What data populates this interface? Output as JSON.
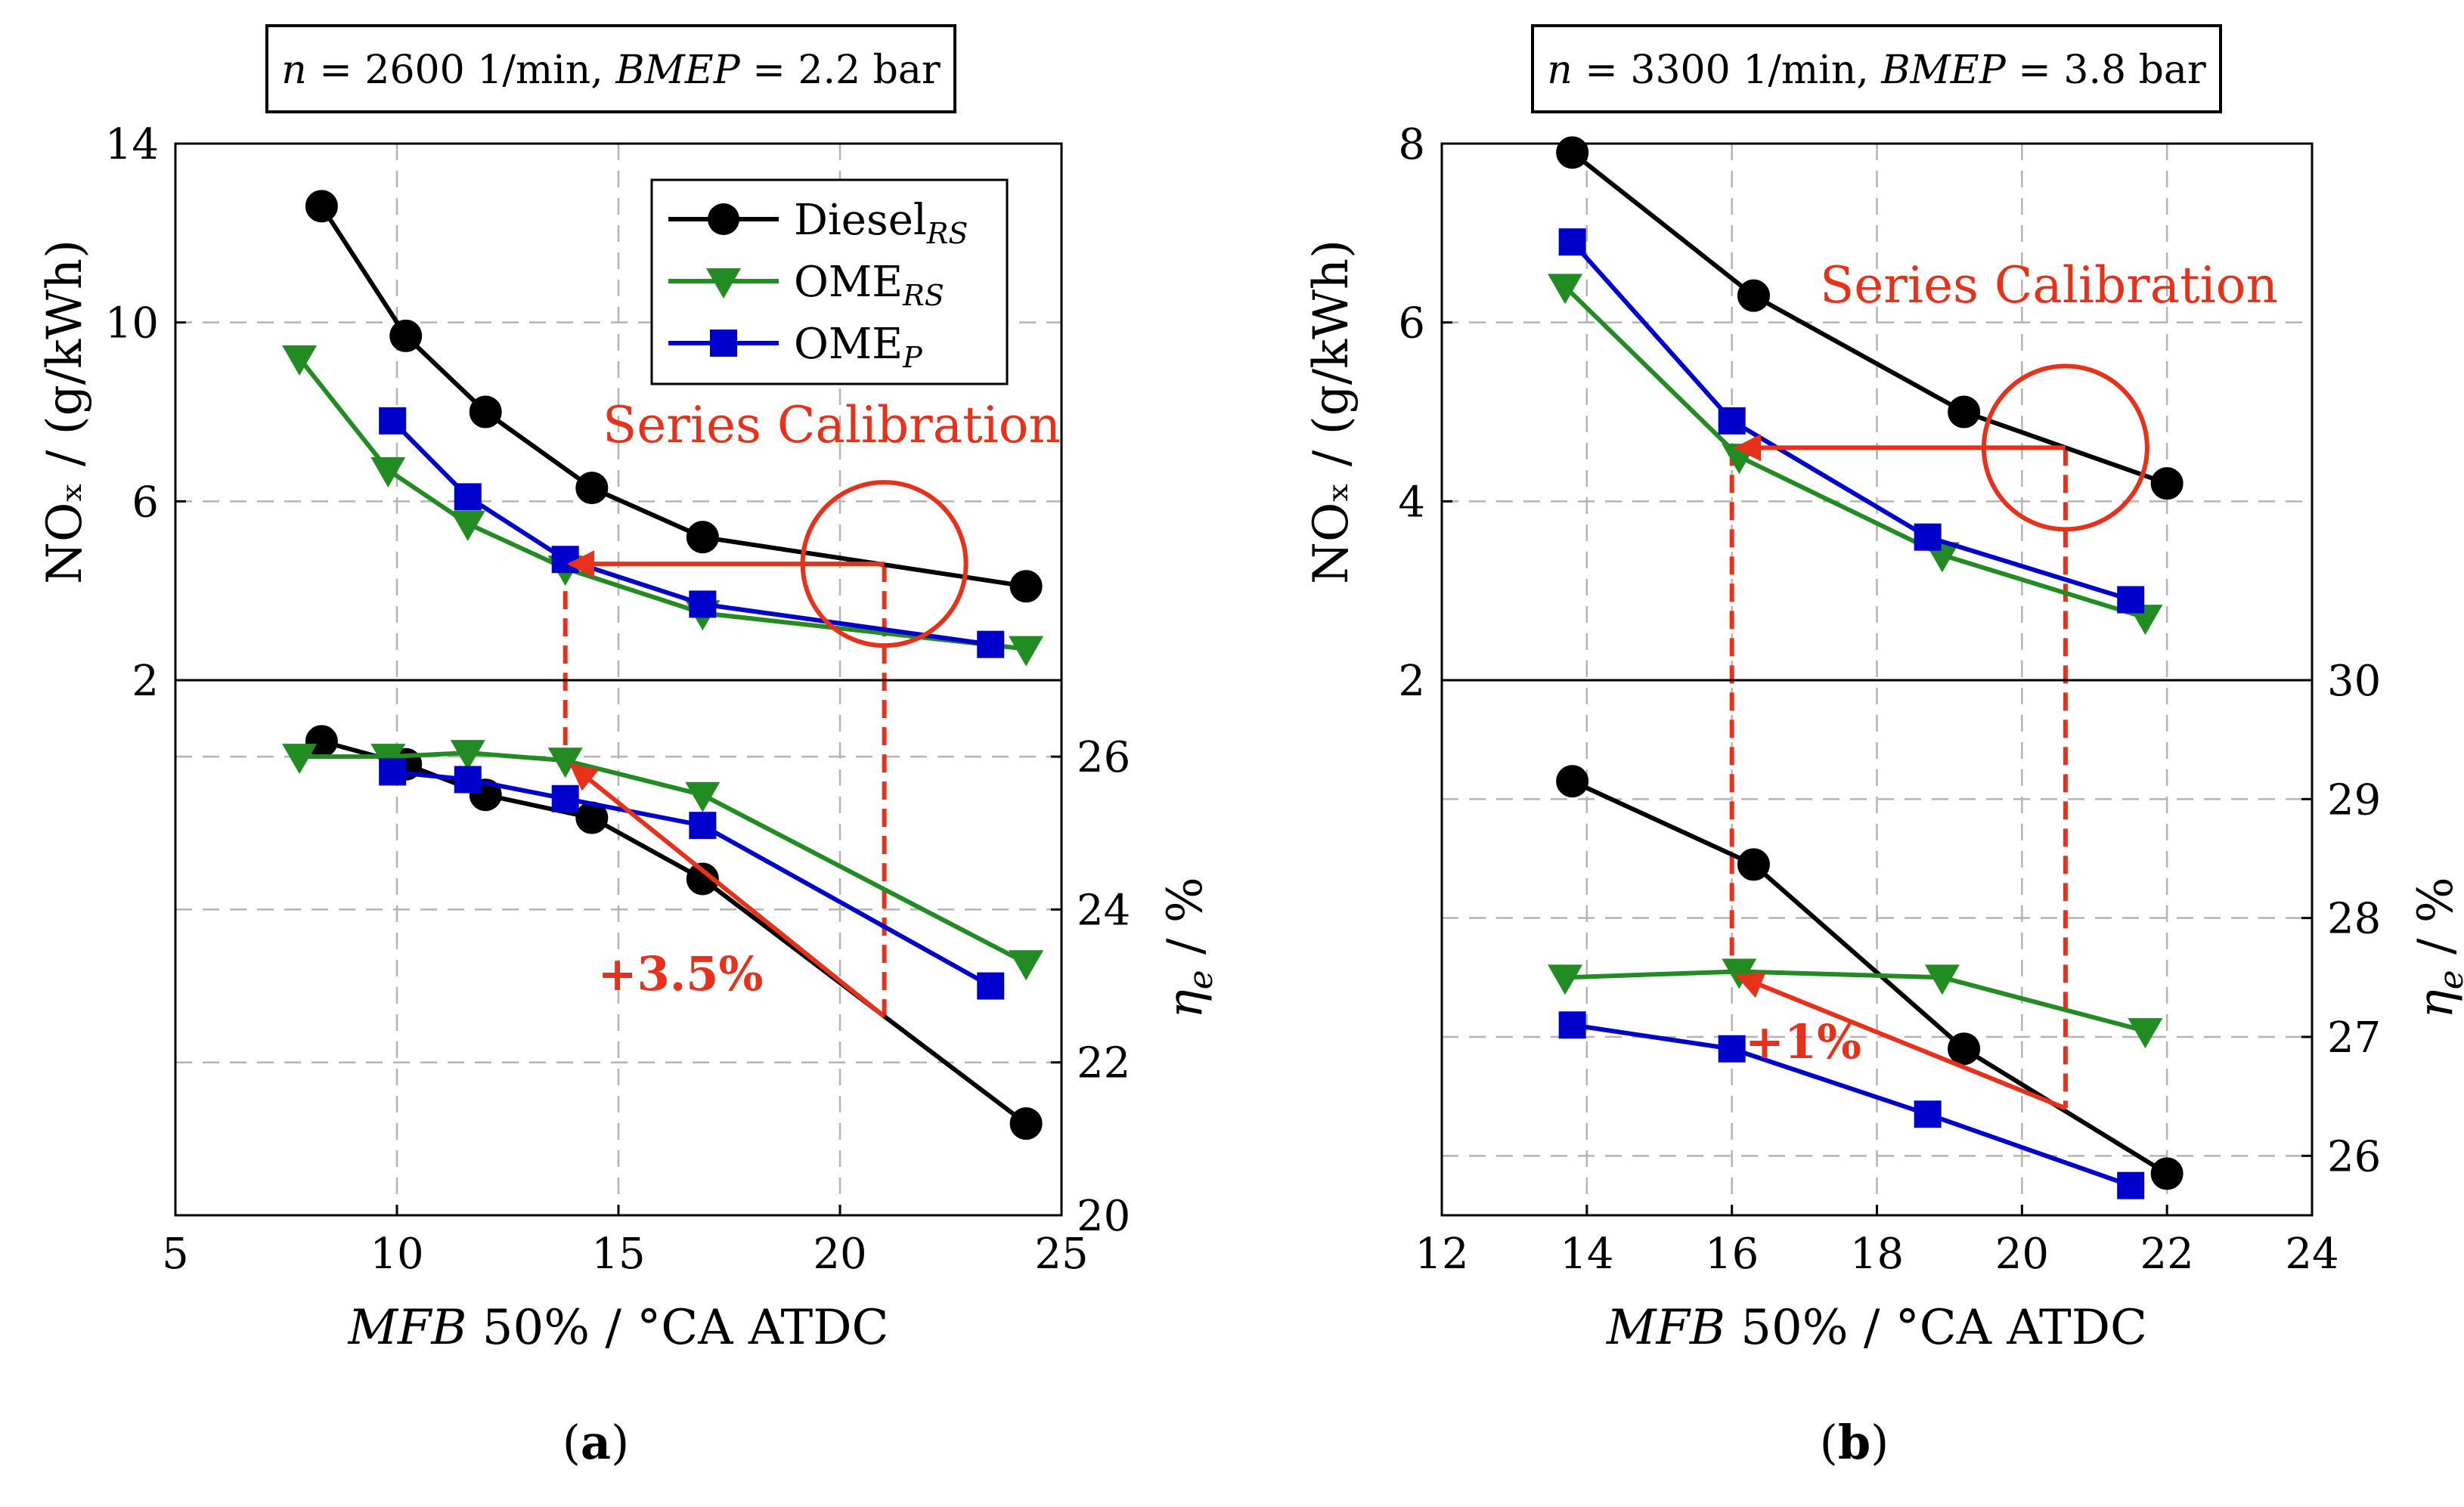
{
  "colors": {
    "diesel": "#000000",
    "ome_rs": "#228b22",
    "ome_p": "#0000cd",
    "annotation": "#e8311a",
    "grid": "#b4b4b4"
  },
  "chart_data": [
    {
      "type": "line",
      "panel_label": "(a)",
      "panel_label_letter": "a",
      "condition": {
        "n_label": "n",
        "n_value": " = 2600 1/min, ",
        "bmep_label": "BMEP",
        "bmep_value": " = 2.2 bar"
      },
      "xlabel": {
        "var": "MFB",
        "rest": " 50% / °CA ATDC"
      },
      "xlim": [
        5,
        25
      ],
      "xticks": [
        5,
        10,
        15,
        20,
        25
      ],
      "top": {
        "ylabel": "NOₓ / (g/kWh)",
        "ylim": [
          2,
          14
        ],
        "yticks": [
          2,
          6,
          10,
          14
        ],
        "series": [
          {
            "key": "diesel",
            "name": "Diesel",
            "sub": "RS",
            "marker": "circle",
            "x": [
              8.3,
              10.2,
              12.0,
              14.4,
              16.9,
              24.2
            ],
            "y": [
              12.6,
              9.7,
              8.0,
              6.3,
              5.2,
              4.1
            ]
          },
          {
            "key": "ome_rs",
            "name": "OME",
            "sub": "RS",
            "marker": "triangle-down",
            "x": [
              7.8,
              9.8,
              11.6,
              13.8,
              16.9,
              24.2
            ],
            "y": [
              9.2,
              6.7,
              5.5,
              4.5,
              3.5,
              2.7
            ]
          },
          {
            "key": "ome_p",
            "name": "OME",
            "sub": "P",
            "marker": "square",
            "x": [
              9.9,
              11.6,
              13.8,
              16.9,
              23.4
            ],
            "y": [
              7.8,
              6.1,
              4.7,
              3.7,
              2.8
            ]
          }
        ],
        "legend_position": "top-right",
        "annotation": {
          "text": "Series Calibration",
          "circle_center": [
            21.0,
            4.6
          ],
          "arrow_from": [
            21.0,
            4.6
          ],
          "arrow_to": [
            13.8,
            4.6
          ]
        }
      },
      "bottom": {
        "ylabel": {
          "var": "η",
          "sub": "e",
          "rest": " / %"
        },
        "ylim": [
          20,
          27
        ],
        "yticks": [
          20,
          22,
          24,
          26
        ],
        "grid_y": [
          22,
          24,
          26
        ],
        "series": [
          {
            "key": "diesel",
            "x": [
              8.3,
              10.2,
              12.0,
              14.4,
              16.9,
              24.2
            ],
            "y": [
              26.2,
              25.9,
              25.5,
              25.2,
              24.4,
              21.2
            ]
          },
          {
            "key": "ome_rs",
            "x": [
              7.8,
              9.8,
              11.6,
              13.8,
              16.9,
              24.2
            ],
            "y": [
              26.0,
              26.0,
              26.05,
              25.95,
              25.5,
              23.3
            ]
          },
          {
            "key": "ome_p",
            "x": [
              9.9,
              11.6,
              13.8,
              16.9,
              23.4
            ],
            "y": [
              25.8,
              25.7,
              25.45,
              25.1,
              23.0
            ]
          }
        ],
        "annotation": {
          "text": "+3.5%",
          "arrow_from": [
            21.0,
            22.6
          ],
          "arrow_to": [
            13.8,
            25.95
          ]
        }
      },
      "dashed_verticals": [
        13.8,
        21.0
      ]
    },
    {
      "type": "line",
      "panel_label": "(b)",
      "panel_label_letter": "b",
      "condition": {
        "n_label": "n",
        "n_value": " = 3300 1/min, ",
        "bmep_label": "BMEP",
        "bmep_value": " = 3.8 bar"
      },
      "xlabel": {
        "var": "MFB",
        "rest": " 50% / °CA ATDC"
      },
      "xlim": [
        12,
        24
      ],
      "xticks": [
        12,
        14,
        16,
        18,
        20,
        22,
        24
      ],
      "top": {
        "ylabel": "NOₓ / (g/kWh)",
        "ylim": [
          2,
          8
        ],
        "yticks": [
          2,
          4,
          6,
          8
        ],
        "series": [
          {
            "key": "diesel",
            "x": [
              13.8,
              16.3,
              19.2,
              22.0
            ],
            "y": [
              7.9,
              6.3,
              5.0,
              4.2
            ]
          },
          {
            "key": "ome_rs",
            "x": [
              13.7,
              16.1,
              18.9,
              21.7
            ],
            "y": [
              6.4,
              4.5,
              3.4,
              2.7
            ]
          },
          {
            "key": "ome_p",
            "x": [
              13.8,
              16.0,
              18.7,
              21.5
            ],
            "y": [
              6.9,
              4.9,
              3.6,
              2.9
            ]
          }
        ],
        "annotation": {
          "text": "Series Calibration",
          "circle_center": [
            20.6,
            4.6
          ],
          "arrow_from": [
            20.6,
            4.6
          ],
          "arrow_to": [
            16.0,
            4.6
          ]
        }
      },
      "bottom": {
        "ylabel": {
          "var": "η",
          "sub": "e",
          "rest": " / %"
        },
        "ylim": [
          25.5,
          30
        ],
        "yticks": [
          26,
          27,
          28,
          29,
          30
        ],
        "grid_y": [
          26,
          27,
          28,
          29
        ],
        "series": [
          {
            "key": "diesel",
            "x": [
              13.8,
              16.3,
              19.2,
              22.0
            ],
            "y": [
              29.15,
              28.45,
              26.9,
              25.85
            ]
          },
          {
            "key": "ome_rs",
            "x": [
              13.7,
              16.1,
              18.9,
              21.7
            ],
            "y": [
              27.5,
              27.55,
              27.5,
              27.05
            ]
          },
          {
            "key": "ome_p",
            "x": [
              13.8,
              16.0,
              18.7,
              21.5
            ],
            "y": [
              27.1,
              26.9,
              26.35,
              25.75
            ]
          }
        ],
        "annotation": {
          "text": "+1%",
          "arrow_from": [
            20.6,
            26.4
          ],
          "arrow_to": [
            16.0,
            27.55
          ]
        }
      },
      "dashed_verticals": [
        16.0,
        20.6
      ]
    }
  ]
}
